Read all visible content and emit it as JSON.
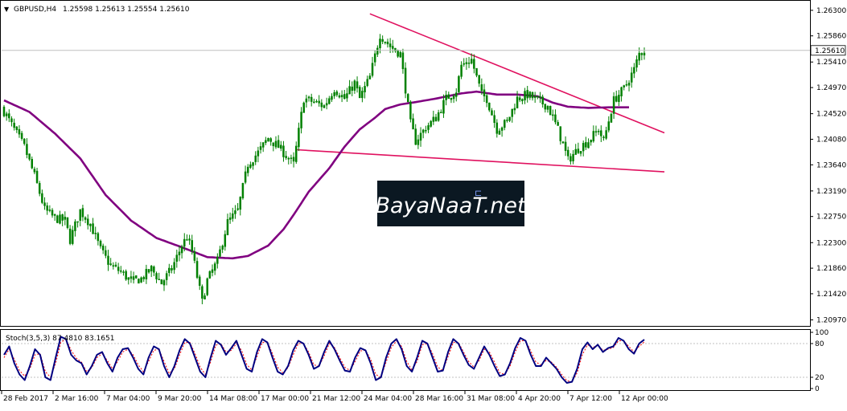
{
  "header": {
    "symbol_timeframe": "GBPUSD,H4",
    "ohlc": "1.25598 1.25613 1.25554 1.25610"
  },
  "watermark": {
    "text": "BayaNaaT.net"
  },
  "stoch_panel": {
    "label": "Stoch(3,5,3) 87.4810 83.1651",
    "levels": [
      "100",
      "80",
      "20",
      "0"
    ]
  },
  "colors": {
    "candle": "#008000",
    "ma": "#800080",
    "trendline": "#e0115f",
    "stoch_main": "#000080",
    "stoch_signal": "#ff0000",
    "watermark_bg": "#0b1822"
  },
  "chart_data": [
    {
      "type": "candlestick",
      "symbol": "GBPUSD",
      "timeframe": "H4",
      "current_price": 1.2561,
      "y_ticks": [
        1.263,
        1.2586,
        1.2541,
        1.2497,
        1.2452,
        1.2408,
        1.2364,
        1.2319,
        1.2275,
        1.223,
        1.2186,
        1.2142,
        1.2097
      ],
      "y_tick_labels": [
        "1.26300",
        "1.25860",
        "1.25410",
        "1.24970",
        "1.24520",
        "1.24080",
        "1.23640",
        "1.23190",
        "1.22750",
        "1.22300",
        "1.21860",
        "1.21420",
        "1.20970"
      ],
      "current_price_label": "1.25610",
      "ylim": [
        1.2088,
        1.2645
      ],
      "x_ticks": [
        "28 Feb 2017",
        "2 Mar 16:00",
        "7 Mar 04:00",
        "9 Mar 20:00",
        "14 Mar 08:00",
        "17 Mar 00:00",
        "21 Mar 12:00",
        "24 Mar 04:00",
        "28 Mar 16:00",
        "31 Mar 08:00",
        "4 Apr 20:00",
        "7 Apr 12:00",
        "12 Apr 00:00"
      ],
      "close_path": [
        [
          0,
          1.2456
        ],
        [
          4,
          1.2425
        ],
        [
          8,
          1.2395
        ],
        [
          12,
          1.2345
        ],
        [
          16,
          1.2287
        ],
        [
          20,
          1.2272
        ],
        [
          24,
          1.2268
        ],
        [
          26,
          1.2235
        ],
        [
          30,
          1.2285
        ],
        [
          34,
          1.2262
        ],
        [
          38,
          1.2218
        ],
        [
          42,
          1.219
        ],
        [
          46,
          1.218
        ],
        [
          50,
          1.2163
        ],
        [
          54,
          1.2168
        ],
        [
          58,
          1.2185
        ],
        [
          62,
          1.216
        ],
        [
          66,
          1.2185
        ],
        [
          70,
          1.2225
        ],
        [
          72,
          1.224
        ],
        [
          74,
          1.2215
        ],
        [
          78,
          1.2128
        ],
        [
          80,
          1.2165
        ],
        [
          84,
          1.2198
        ],
        [
          88,
          1.2265
        ],
        [
          92,
          1.2285
        ],
        [
          96,
          1.2365
        ],
        [
          100,
          1.2385
        ],
        [
          104,
          1.241
        ],
        [
          108,
          1.2395
        ],
        [
          112,
          1.2375
        ],
        [
          114,
          1.2365
        ],
        [
          118,
          1.2478
        ],
        [
          122,
          1.2472
        ],
        [
          126,
          1.2465
        ],
        [
          130,
          1.2495
        ],
        [
          134,
          1.2478
        ],
        [
          138,
          1.2505
        ],
        [
          140,
          1.2478
        ],
        [
          144,
          1.2515
        ],
        [
          148,
          1.2588
        ],
        [
          152,
          1.2568
        ],
        [
          156,
          1.2555
        ],
        [
          158,
          1.2495
        ],
        [
          160,
          1.2435
        ],
        [
          162,
          1.2405
        ],
        [
          166,
          1.2428
        ],
        [
          170,
          1.2445
        ],
        [
          174,
          1.2478
        ],
        [
          178,
          1.2492
        ],
        [
          180,
          1.2535
        ],
        [
          184,
          1.2545
        ],
        [
          186,
          1.2515
        ],
        [
          188,
          1.2485
        ],
        [
          190,
          1.2478
        ],
        [
          194,
          1.2425
        ],
        [
          198,
          1.2438
        ],
        [
          202,
          1.2478
        ],
        [
          206,
          1.2485
        ],
        [
          210,
          1.2475
        ],
        [
          214,
          1.2465
        ],
        [
          218,
          1.2425
        ],
        [
          222,
          1.2372
        ],
        [
          226,
          1.2392
        ],
        [
          230,
          1.2405
        ],
        [
          234,
          1.2425
        ],
        [
          236,
          1.2405
        ],
        [
          240,
          1.2475
        ],
        [
          244,
          1.2495
        ],
        [
          248,
          1.2528
        ],
        [
          250,
          1.2555
        ],
        [
          252,
          1.2561
        ]
      ],
      "series": [
        {
          "name": "",
          "type": "moving-average",
          "points": [
            [
              0,
              1.2475
            ],
            [
              10,
              1.2455
            ],
            [
              20,
              1.2418
            ],
            [
              30,
              1.2375
            ],
            [
              40,
              1.2312
            ],
            [
              50,
              1.2268
            ],
            [
              60,
              1.2238
            ],
            [
              70,
              1.2222
            ],
            [
              80,
              1.2205
            ],
            [
              90,
              1.2203
            ],
            [
              96,
              1.2207
            ],
            [
              104,
              1.2225
            ],
            [
              110,
              1.2253
            ],
            [
              114,
              1.2278
            ],
            [
              120,
              1.2318
            ],
            [
              128,
              1.2358
            ],
            [
              134,
              1.2395
            ],
            [
              140,
              1.2425
            ],
            [
              146,
              1.2445
            ],
            [
              150,
              1.246
            ],
            [
              156,
              1.2468
            ],
            [
              162,
              1.2472
            ],
            [
              170,
              1.2478
            ],
            [
              180,
              1.2487
            ],
            [
              186,
              1.249
            ],
            [
              194,
              1.2485
            ],
            [
              202,
              1.2485
            ],
            [
              210,
              1.2482
            ],
            [
              216,
              1.2471
            ],
            [
              222,
              1.2464
            ],
            [
              230,
              1.2462
            ],
            [
              238,
              1.2463
            ],
            [
              246,
              1.2463
            ]
          ]
        },
        {
          "name": "",
          "type": "trendline",
          "points": [
            [
              144,
              1.2624
            ],
            [
              252,
              1.2433
            ]
          ]
        },
        {
          "name": "",
          "type": "trendline",
          "points": [
            [
              115,
              1.239
            ],
            [
              252,
              1.2354
            ]
          ]
        }
      ]
    },
    {
      "type": "line",
      "indicator": "Stochastic",
      "ylim": [
        0,
        100
      ],
      "levels": [
        20,
        80
      ],
      "x_range": [
        0,
        252
      ],
      "series": [
        {
          "name": "",
          "values": [
            60,
            75,
            45,
            25,
            15,
            40,
            70,
            60,
            20,
            15,
            55,
            92,
            88,
            60,
            50,
            45,
            25,
            40,
            60,
            65,
            45,
            30,
            55,
            70,
            72,
            55,
            35,
            25,
            55,
            75,
            70,
            40,
            20,
            40,
            68,
            88,
            80,
            55,
            30,
            20,
            55,
            85,
            78,
            60,
            72,
            85,
            60,
            35,
            30,
            65,
            88,
            82,
            55,
            30,
            25,
            40,
            68,
            85,
            80,
            60,
            35,
            40,
            65,
            85,
            70,
            50,
            32,
            30,
            55,
            72,
            68,
            45,
            15,
            20,
            55,
            80,
            88,
            70,
            40,
            30,
            55,
            85,
            80,
            55,
            30,
            32,
            65,
            88,
            80,
            60,
            42,
            35,
            55,
            75,
            60,
            40,
            22,
            25,
            45,
            72,
            90,
            85,
            60,
            40,
            40,
            55,
            45,
            35,
            20,
            10,
            12,
            35,
            70,
            82,
            70,
            78,
            65,
            72,
            75,
            90,
            85,
            70,
            62,
            80,
            87
          ]
        },
        {
          "name": "",
          "values": [
            55,
            70,
            52,
            32,
            22,
            35,
            60,
            62,
            30,
            20,
            45,
            82,
            88,
            68,
            54,
            47,
            30,
            37,
            55,
            62,
            50,
            35,
            48,
            65,
            70,
            60,
            42,
            30,
            48,
            68,
            70,
            48,
            27,
            35,
            60,
            82,
            82,
            62,
            38,
            25,
            47,
            77,
            80,
            65,
            68,
            80,
            68,
            43,
            33,
            57,
            82,
            83,
            62,
            38,
            28,
            37,
            60,
            80,
            80,
            65,
            42,
            40,
            58,
            80,
            73,
            55,
            38,
            32,
            48,
            67,
            68,
            52,
            25,
            20,
            47,
            73,
            85,
            75,
            48,
            33,
            48,
            78,
            80,
            62,
            38,
            32,
            57,
            82,
            82,
            65,
            48,
            38,
            50,
            70,
            65,
            47,
            28,
            25,
            40,
            65,
            85,
            85,
            67,
            47,
            42,
            50,
            47,
            38,
            25,
            14,
            12,
            28,
            60,
            78,
            73,
            77,
            68,
            70,
            73,
            85,
            85,
            75,
            65,
            75,
            83
          ]
        }
      ]
    }
  ]
}
